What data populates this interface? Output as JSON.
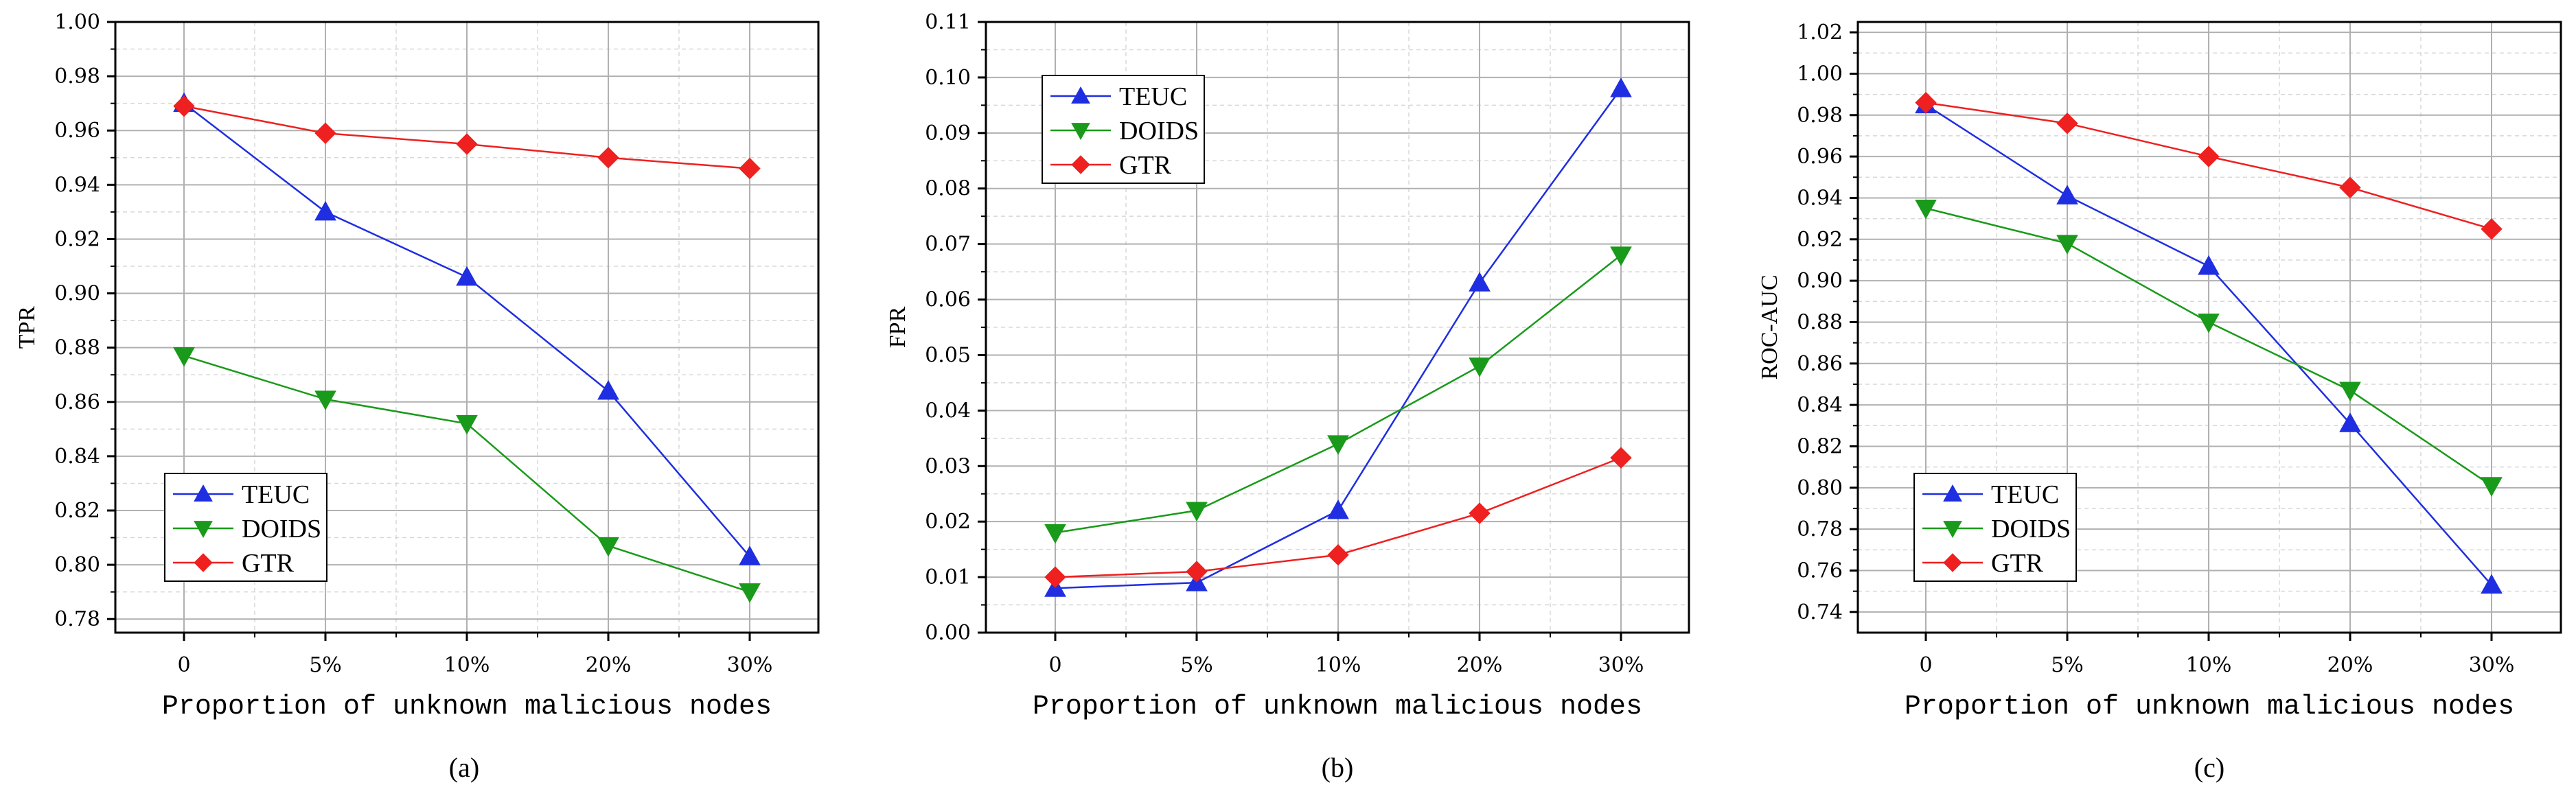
{
  "chart_data": [
    {
      "type": "line",
      "panel": "(a)",
      "categories": [
        "0",
        "5%",
        "10%",
        "20%",
        "30%"
      ],
      "xlabel": "Proportion of unknown malicious nodes",
      "ylabel": "TPR",
      "ylim": [
        0.775,
        1.0
      ],
      "yticks": [
        "0.78",
        "0.80",
        "0.82",
        "0.84",
        "0.86",
        "0.88",
        "0.90",
        "0.92",
        "0.94",
        "0.96",
        "0.98",
        "1.00"
      ],
      "ytick_values": [
        0.78,
        0.8,
        0.82,
        0.84,
        0.86,
        0.88,
        0.9,
        0.92,
        0.94,
        0.96,
        0.98,
        1.0
      ],
      "legend_position": "bottom-left",
      "series": [
        {
          "name": "TEUC",
          "color": "#1f2ee0",
          "marker": "triangle-up",
          "values": [
            0.97,
            0.93,
            0.906,
            0.864,
            0.803
          ]
        },
        {
          "name": "DOIDS",
          "color": "#1a9a1a",
          "marker": "triangle-down",
          "values": [
            0.877,
            0.861,
            0.852,
            0.807,
            0.79
          ]
        },
        {
          "name": "GTR",
          "color": "#ee2020",
          "marker": "diamond",
          "values": [
            0.969,
            0.959,
            0.955,
            0.95,
            0.946
          ]
        }
      ]
    },
    {
      "type": "line",
      "panel": "(b)",
      "categories": [
        "0",
        "5%",
        "10%",
        "20%",
        "30%"
      ],
      "xlabel": "Proportion of unknown malicious nodes",
      "ylabel": "FPR",
      "ylim": [
        0.0,
        0.11
      ],
      "yticks": [
        "0.00",
        "0.01",
        "0.02",
        "0.03",
        "0.04",
        "0.05",
        "0.06",
        "0.07",
        "0.08",
        "0.09",
        "0.10",
        "0.11"
      ],
      "ytick_values": [
        0.0,
        0.01,
        0.02,
        0.03,
        0.04,
        0.05,
        0.06,
        0.07,
        0.08,
        0.09,
        0.1,
        0.11
      ],
      "legend_position": "top-left",
      "series": [
        {
          "name": "TEUC",
          "color": "#1f2ee0",
          "marker": "triangle-up",
          "values": [
            0.008,
            0.009,
            0.022,
            0.063,
            0.098
          ]
        },
        {
          "name": "DOIDS",
          "color": "#1a9a1a",
          "marker": "triangle-down",
          "values": [
            0.018,
            0.022,
            0.034,
            0.048,
            0.068
          ]
        },
        {
          "name": "GTR",
          "color": "#ee2020",
          "marker": "diamond",
          "values": [
            0.01,
            0.011,
            0.014,
            0.0215,
            0.0315
          ]
        }
      ]
    },
    {
      "type": "line",
      "panel": "(c)",
      "categories": [
        "0",
        "5%",
        "10%",
        "20%",
        "30%"
      ],
      "xlabel": "Proportion of unknown malicious nodes",
      "ylabel": "ROC-AUC",
      "ylim": [
        0.73,
        1.025
      ],
      "yticks": [
        "0.74",
        "0.76",
        "0.78",
        "0.80",
        "0.82",
        "0.84",
        "0.86",
        "0.88",
        "0.90",
        "0.92",
        "0.94",
        "0.96",
        "0.98",
        "1.00",
        "1.02"
      ],
      "ytick_values": [
        0.74,
        0.76,
        0.78,
        0.8,
        0.82,
        0.84,
        0.86,
        0.88,
        0.9,
        0.92,
        0.94,
        0.96,
        0.98,
        1.0,
        1.02
      ],
      "legend_position": "bottom-left",
      "series": [
        {
          "name": "TEUC",
          "color": "#1f2ee0",
          "marker": "triangle-up",
          "values": [
            0.985,
            0.941,
            0.907,
            0.831,
            0.753
          ]
        },
        {
          "name": "DOIDS",
          "color": "#1a9a1a",
          "marker": "triangle-down",
          "values": [
            0.935,
            0.918,
            0.88,
            0.847,
            0.801
          ]
        },
        {
          "name": "GTR",
          "color": "#ee2020",
          "marker": "diamond",
          "values": [
            0.986,
            0.976,
            0.96,
            0.945,
            0.925
          ]
        }
      ]
    }
  ]
}
